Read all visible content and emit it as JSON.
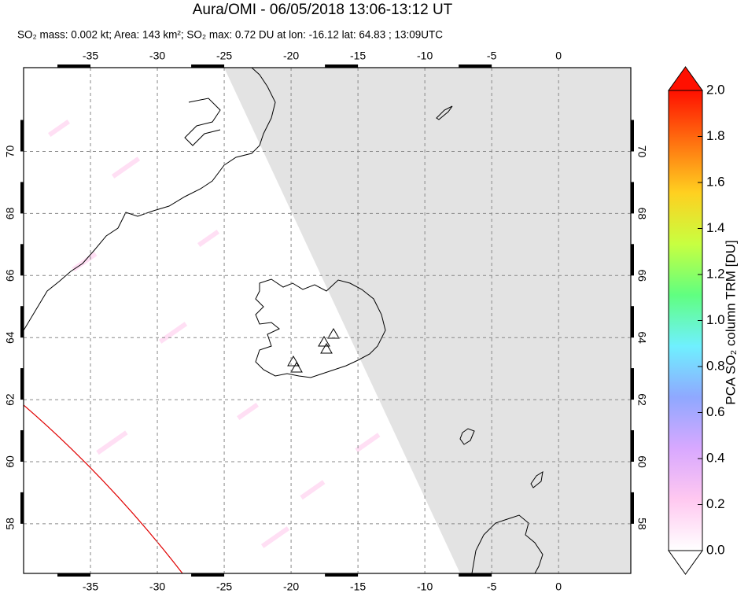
{
  "chart_data": {
    "type": "map",
    "title": "Aura/OMI - 06/05/2018 13:06-13:12 UT",
    "subtitle": "SO₂ mass: 0.002 kt; Area: 143 km²; SO₂ max: 0.72 DU at lon: -16.12 lat: 64.83 ; 13:09UTC",
    "xlim": [
      -40,
      5.4
    ],
    "ylim": [
      56.4,
      72.7
    ],
    "xticks": [
      -35,
      -30,
      -25,
      -20,
      -15,
      -10,
      -5,
      0
    ],
    "yticks": [
      58,
      60,
      62,
      64,
      66,
      68,
      70
    ],
    "grid": true,
    "colorbar": {
      "label": "PCA SO₂ column TRM [DU]",
      "lim": [
        0,
        2
      ],
      "colors": [
        "#ffffff",
        "#ffc8f0",
        "#d8a8ff",
        "#8fa8ff",
        "#6ff0ff",
        "#60ff80",
        "#c8ff40",
        "#ffd020",
        "#ff7010",
        "#ff1000"
      ],
      "ticks": [
        {
          "value": 0,
          "label": "0.0"
        },
        {
          "value": 0.2,
          "label": "0.2"
        },
        {
          "value": 0.4,
          "label": "0.4"
        },
        {
          "value": 0.6,
          "label": "0.6"
        },
        {
          "value": 0.8,
          "label": "0.8"
        },
        {
          "value": 1,
          "label": "1.0"
        },
        {
          "value": 1.2,
          "label": "1.2"
        },
        {
          "value": 1.4,
          "label": "1.4"
        },
        {
          "value": 1.6,
          "label": "1.6"
        },
        {
          "value": 1.8,
          "label": "1.8"
        },
        {
          "value": 2,
          "label": "2.0"
        }
      ]
    }
  }
}
